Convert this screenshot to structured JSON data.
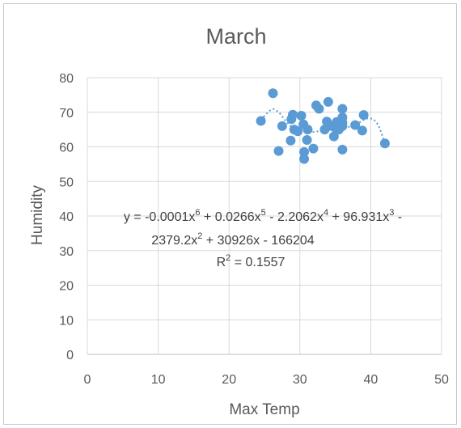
{
  "chart_data": {
    "type": "scatter",
    "title": "March",
    "xlabel": "Max Temp",
    "ylabel": "Humidity",
    "xlim": [
      0,
      50
    ],
    "ylim": [
      0,
      80
    ],
    "xticks": [
      "0",
      "10",
      "20",
      "30",
      "40",
      "50"
    ],
    "yticks": [
      "0",
      "10",
      "20",
      "30",
      "40",
      "50",
      "60",
      "70",
      "80"
    ],
    "grid": true,
    "legend": "none",
    "marker_color": "#5b9bd5",
    "trendline": {
      "type": "polynomial",
      "order": 6,
      "style": "dotted",
      "equation_line1": "y = -0.0001x⁶ + 0.0266x⁵ - 2.2062x⁴ + 96.931x³ -",
      "equation_line2": "2379.2x² + 30926x - 166204",
      "r_squared": "R² = 0.1557",
      "curve_x": [
        24.5,
        26,
        27,
        28,
        29,
        30,
        31,
        32,
        33,
        34,
        35,
        36,
        37,
        38,
        39,
        40,
        41,
        42
      ],
      "curve_y": [
        67.8,
        70.8,
        70,
        67.5,
        65.5,
        65.5,
        65,
        64.3,
        64.8,
        65.5,
        65.8,
        65.5,
        65.8,
        66.5,
        67.8,
        68.2,
        66.5,
        61
      ]
    },
    "points": [
      {
        "x": 24.5,
        "y": 67.5
      },
      {
        "x": 26.2,
        "y": 75.5
      },
      {
        "x": 27,
        "y": 58.8
      },
      {
        "x": 27.5,
        "y": 66
      },
      {
        "x": 28.7,
        "y": 61.8
      },
      {
        "x": 28.8,
        "y": 68
      },
      {
        "x": 29,
        "y": 69.3
      },
      {
        "x": 29.2,
        "y": 65
      },
      {
        "x": 29.7,
        "y": 64.5
      },
      {
        "x": 30.2,
        "y": 69
      },
      {
        "x": 30.5,
        "y": 66.5
      },
      {
        "x": 30.6,
        "y": 58.5
      },
      {
        "x": 30.6,
        "y": 56.5
      },
      {
        "x": 31,
        "y": 62
      },
      {
        "x": 31.1,
        "y": 65
      },
      {
        "x": 31.9,
        "y": 59.5
      },
      {
        "x": 32.3,
        "y": 72
      },
      {
        "x": 32.7,
        "y": 71
      },
      {
        "x": 33.5,
        "y": 65
      },
      {
        "x": 33.8,
        "y": 67.3
      },
      {
        "x": 34,
        "y": 73
      },
      {
        "x": 34.5,
        "y": 66
      },
      {
        "x": 34.8,
        "y": 63
      },
      {
        "x": 35,
        "y": 65.5
      },
      {
        "x": 35.2,
        "y": 67.2
      },
      {
        "x": 35.5,
        "y": 65
      },
      {
        "x": 36,
        "y": 71
      },
      {
        "x": 36,
        "y": 68.5
      },
      {
        "x": 36,
        "y": 67
      },
      {
        "x": 36,
        "y": 66
      },
      {
        "x": 36,
        "y": 59.2
      },
      {
        "x": 37.8,
        "y": 66.3
      },
      {
        "x": 38.8,
        "y": 64.7
      },
      {
        "x": 39,
        "y": 69.2
      },
      {
        "x": 42,
        "y": 61
      }
    ]
  }
}
